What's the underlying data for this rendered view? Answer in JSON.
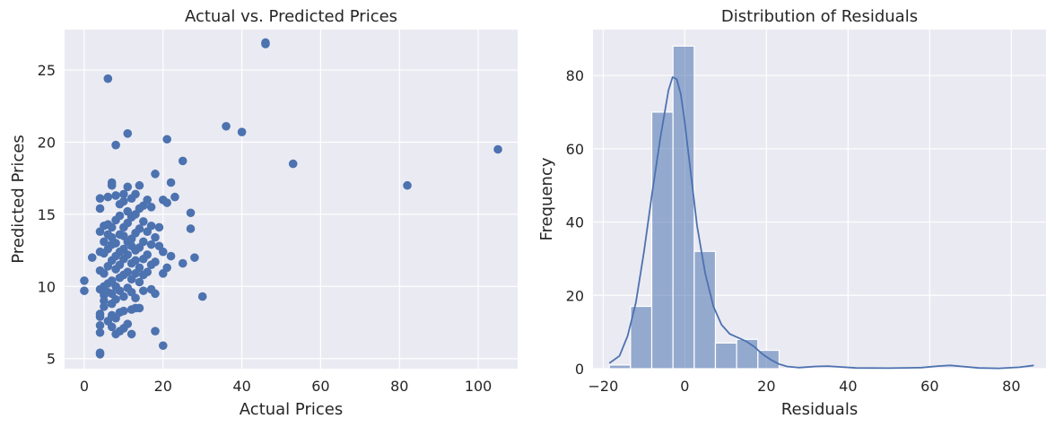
{
  "chart_data": [
    {
      "type": "scatter",
      "title": "Actual vs. Predicted Prices",
      "xlabel": "Actual Prices",
      "ylabel": "Predicted Prices",
      "xlim": [
        -5,
        110
      ],
      "ylim": [
        4.3,
        27.8
      ],
      "xticks": [
        0,
        20,
        40,
        60,
        80,
        100
      ],
      "yticks": [
        5,
        10,
        15,
        20,
        25
      ],
      "grid": true,
      "color": "#4c72b0",
      "points": [
        [
          0,
          10.4
        ],
        [
          0,
          9.7
        ],
        [
          2,
          12.0
        ],
        [
          4,
          5.3
        ],
        [
          4,
          5.4
        ],
        [
          4,
          6.8
        ],
        [
          4,
          7.3
        ],
        [
          4,
          7.9
        ],
        [
          4,
          8.1
        ],
        [
          4,
          9.8
        ],
        [
          4,
          11.1
        ],
        [
          4,
          12.4
        ],
        [
          4,
          13.8
        ],
        [
          4,
          15.4
        ],
        [
          4,
          16.1
        ],
        [
          5,
          8.6
        ],
        [
          5,
          9.0
        ],
        [
          5,
          9.4
        ],
        [
          5,
          10.0
        ],
        [
          5,
          10.9
        ],
        [
          5,
          12.3
        ],
        [
          5,
          13.1
        ],
        [
          5,
          14.2
        ],
        [
          6,
          24.4
        ],
        [
          6,
          7.6
        ],
        [
          6,
          9.6
        ],
        [
          6,
          10.2
        ],
        [
          6,
          11.4
        ],
        [
          6,
          12.6
        ],
        [
          6,
          13.6
        ],
        [
          6,
          14.3
        ],
        [
          6,
          16.2
        ],
        [
          7,
          7.2
        ],
        [
          7,
          8.0
        ],
        [
          7,
          8.8
        ],
        [
          7,
          9.5
        ],
        [
          7,
          10.4
        ],
        [
          7,
          11.8
        ],
        [
          7,
          12.9
        ],
        [
          7,
          13.4
        ],
        [
          7,
          14.1
        ],
        [
          7,
          17.0
        ],
        [
          7,
          17.2
        ],
        [
          8,
          19.8
        ],
        [
          8,
          6.7
        ],
        [
          8,
          7.8
        ],
        [
          8,
          9.1
        ],
        [
          8,
          10.0
        ],
        [
          8,
          11.2
        ],
        [
          8,
          12.1
        ],
        [
          8,
          13.0
        ],
        [
          8,
          14.6
        ],
        [
          8,
          16.3
        ],
        [
          9,
          6.9
        ],
        [
          9,
          8.2
        ],
        [
          9,
          9.7
        ],
        [
          9,
          10.6
        ],
        [
          9,
          11.5
        ],
        [
          9,
          12.4
        ],
        [
          9,
          13.6
        ],
        [
          9,
          14.9
        ],
        [
          9,
          15.7
        ],
        [
          10,
          7.1
        ],
        [
          10,
          8.3
        ],
        [
          10,
          9.3
        ],
        [
          10,
          10.8
        ],
        [
          10,
          11.9
        ],
        [
          10,
          12.6
        ],
        [
          10,
          13.5
        ],
        [
          10,
          14.1
        ],
        [
          10,
          15.9
        ],
        [
          10,
          16.4
        ],
        [
          11,
          20.6
        ],
        [
          11,
          7.4
        ],
        [
          11,
          9.9
        ],
        [
          11,
          11.0
        ],
        [
          11,
          12.2
        ],
        [
          11,
          13.1
        ],
        [
          11,
          14.4
        ],
        [
          11,
          15.2
        ],
        [
          11,
          16.9
        ],
        [
          12,
          6.7
        ],
        [
          12,
          8.4
        ],
        [
          12,
          9.6
        ],
        [
          12,
          10.5
        ],
        [
          12,
          11.6
        ],
        [
          12,
          12.8
        ],
        [
          12,
          13.3
        ],
        [
          12,
          14.8
        ],
        [
          12,
          16.1
        ],
        [
          13,
          8.5
        ],
        [
          13,
          9.2
        ],
        [
          13,
          10.9
        ],
        [
          13,
          11.8
        ],
        [
          13,
          12.5
        ],
        [
          13,
          13.7
        ],
        [
          13,
          15.0
        ],
        [
          13,
          16.4
        ],
        [
          14,
          8.5
        ],
        [
          14,
          10.3
        ],
        [
          14,
          11.3
        ],
        [
          14,
          12.7
        ],
        [
          14,
          14.0
        ],
        [
          14,
          15.4
        ],
        [
          14,
          17.0
        ],
        [
          15,
          9.7
        ],
        [
          15,
          10.8
        ],
        [
          15,
          11.9
        ],
        [
          15,
          13.1
        ],
        [
          15,
          14.5
        ],
        [
          15,
          15.6
        ],
        [
          16,
          11.0
        ],
        [
          16,
          12.2
        ],
        [
          16,
          13.8
        ],
        [
          16,
          16.0
        ],
        [
          17,
          9.8
        ],
        [
          17,
          11.5
        ],
        [
          17,
          12.9
        ],
        [
          17,
          14.2
        ],
        [
          17,
          15.5
        ],
        [
          18,
          6.9
        ],
        [
          18,
          9.5
        ],
        [
          18,
          11.7
        ],
        [
          18,
          13.4
        ],
        [
          18,
          17.8
        ],
        [
          19,
          12.8
        ],
        [
          19,
          14.1
        ],
        [
          20,
          5.9
        ],
        [
          20,
          10.9
        ],
        [
          20,
          12.4
        ],
        [
          20,
          16.0
        ],
        [
          21,
          20.2
        ],
        [
          21,
          15.8
        ],
        [
          21,
          11.3
        ],
        [
          22,
          17.2
        ],
        [
          22,
          12.1
        ],
        [
          23,
          16.2
        ],
        [
          25,
          18.7
        ],
        [
          25,
          11.6
        ],
        [
          27,
          15.1
        ],
        [
          27,
          14.0
        ],
        [
          28,
          12.0
        ],
        [
          30,
          9.3
        ],
        [
          36,
          21.1
        ],
        [
          40,
          20.7
        ],
        [
          46,
          26.9
        ],
        [
          46,
          26.8
        ],
        [
          53,
          18.5
        ],
        [
          82,
          17.0
        ],
        [
          105,
          19.5
        ]
      ]
    },
    {
      "type": "bar",
      "title": "Distribution of Residuals",
      "xlabel": "Residuals",
      "ylabel": "Frequency",
      "xlim": [
        -22.5,
        88.5
      ],
      "ylim": [
        0,
        92.5
      ],
      "xticks": [
        -20,
        0,
        20,
        40,
        60,
        80
      ],
      "yticks": [
        0,
        20,
        40,
        60,
        80
      ],
      "grid": true,
      "color": "#4c72b0",
      "bin_edges": [
        -18.5,
        -13.3,
        -8.1,
        -2.9,
        2.3,
        7.5,
        12.7,
        17.9,
        23.1,
        28.3,
        33.5,
        38.7,
        43.9,
        49.1,
        54.3,
        59.5,
        64.7,
        69.9,
        75.1,
        80.3,
        85.5
      ],
      "counts": [
        1,
        17,
        70,
        88,
        32,
        7,
        8,
        5,
        0,
        0,
        0,
        0,
        0,
        0,
        0,
        0,
        0,
        0,
        0,
        0
      ],
      "kde": [
        [
          -18.5,
          1.5
        ],
        [
          -16,
          3.5
        ],
        [
          -14,
          9
        ],
        [
          -12,
          18
        ],
        [
          -10,
          32
        ],
        [
          -8,
          48
        ],
        [
          -6,
          63
        ],
        [
          -4,
          76
        ],
        [
          -3,
          79.5
        ],
        [
          -2,
          79
        ],
        [
          -1,
          75
        ],
        [
          0,
          67
        ],
        [
          1.5,
          53
        ],
        [
          3,
          39
        ],
        [
          5,
          26
        ],
        [
          7,
          17
        ],
        [
          9,
          12
        ],
        [
          11,
          9.5
        ],
        [
          13,
          8.5
        ],
        [
          15,
          7.5
        ],
        [
          17,
          6
        ],
        [
          19,
          4
        ],
        [
          21,
          2.5
        ],
        [
          23,
          1.3
        ],
        [
          25,
          0.6
        ],
        [
          28,
          0.3
        ],
        [
          32,
          0.6
        ],
        [
          35,
          0.7
        ],
        [
          38,
          0.5
        ],
        [
          42,
          0.2
        ],
        [
          50,
          0.15
        ],
        [
          58,
          0.3
        ],
        [
          62,
          0.7
        ],
        [
          65,
          0.9
        ],
        [
          68,
          0.6
        ],
        [
          72,
          0.2
        ],
        [
          77,
          0.1
        ],
        [
          82,
          0.4
        ],
        [
          85.5,
          0.9
        ]
      ]
    }
  ]
}
